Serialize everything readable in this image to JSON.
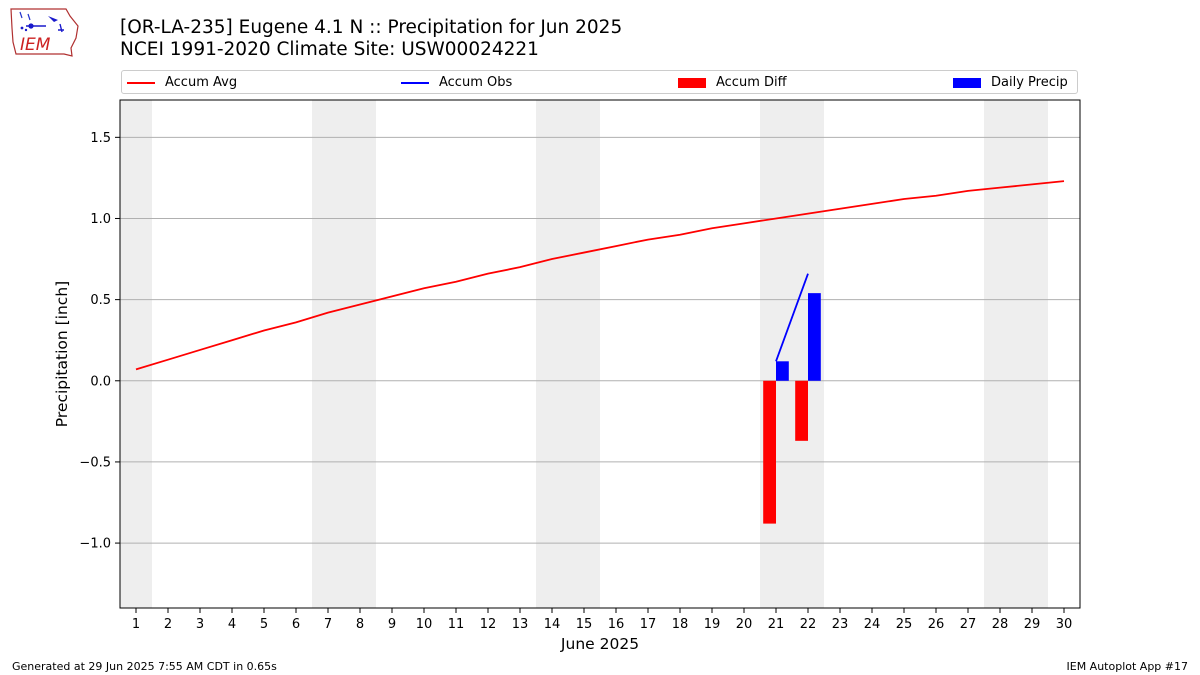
{
  "logo": {
    "text": "IEM",
    "icon": "iem-iowa-map-logo"
  },
  "header": {
    "title": "[OR-LA-235] Eugene 4.1 N :: Precipitation for Jun 2025",
    "subtitle": "NCEI 1991-2020 Climate Site: USW00024221"
  },
  "legend": {
    "items": [
      {
        "label": "Accum Avg",
        "kind": "line",
        "color": "#ff0000"
      },
      {
        "label": "Accum Obs",
        "kind": "line",
        "color": "#0000ff"
      },
      {
        "label": "Accum Diff",
        "kind": "bar",
        "color": "#ff0000"
      },
      {
        "label": "Daily Precip",
        "kind": "bar",
        "color": "#0000ff"
      }
    ]
  },
  "footer": {
    "left": "Generated at 29 Jun 2025 7:55 AM CDT in 0.65s",
    "right": "IEM Autoplot App #17"
  },
  "chart_data": {
    "type": "bar",
    "xlabel": "June 2025",
    "ylabel": "Precipitation [inch]",
    "xlim": [
      0.5,
      30.5
    ],
    "ylim": [
      -1.4,
      1.73
    ],
    "x_ticks": [
      1,
      2,
      3,
      4,
      5,
      6,
      7,
      8,
      9,
      10,
      11,
      12,
      13,
      14,
      15,
      16,
      17,
      18,
      19,
      20,
      21,
      22,
      23,
      24,
      25,
      26,
      27,
      28,
      29,
      30
    ],
    "y_ticks": [
      -1.0,
      -0.5,
      0.0,
      0.5,
      1.0,
      1.5
    ],
    "y_tick_labels": [
      "−1.0",
      "−0.5",
      "0.0",
      "0.5",
      "1.0",
      "1.5"
    ],
    "grid": "horizontal",
    "legend_position": "top",
    "weekend_shading": [
      [
        0.5,
        1.5
      ],
      [
        6.5,
        8.5
      ],
      [
        13.5,
        15.5
      ],
      [
        20.5,
        22.5
      ],
      [
        27.5,
        29.5
      ]
    ],
    "series": [
      {
        "name": "Accum Avg",
        "type": "line",
        "color": "#ff0000",
        "x": [
          1,
          2,
          3,
          4,
          5,
          6,
          7,
          8,
          9,
          10,
          11,
          12,
          13,
          14,
          15,
          16,
          17,
          18,
          19,
          20,
          21,
          22,
          23,
          24,
          25,
          26,
          27,
          28,
          29,
          30
        ],
        "values": [
          0.07,
          0.13,
          0.19,
          0.25,
          0.31,
          0.36,
          0.42,
          0.47,
          0.52,
          0.57,
          0.61,
          0.66,
          0.7,
          0.75,
          0.79,
          0.83,
          0.87,
          0.9,
          0.94,
          0.97,
          1.0,
          1.03,
          1.06,
          1.09,
          1.12,
          1.14,
          1.17,
          1.19,
          1.21,
          1.23
        ]
      },
      {
        "name": "Accum Obs",
        "type": "line",
        "color": "#0000ff",
        "x": [
          21,
          22
        ],
        "values": [
          0.12,
          0.66
        ]
      },
      {
        "name": "Accum Diff",
        "type": "bar",
        "color": "#ff0000",
        "x": [
          21,
          22
        ],
        "values": [
          -0.88,
          -0.37
        ]
      },
      {
        "name": "Daily Precip",
        "type": "bar",
        "color": "#0000ff",
        "x": [
          21,
          22
        ],
        "values": [
          0.12,
          0.54
        ]
      }
    ]
  }
}
